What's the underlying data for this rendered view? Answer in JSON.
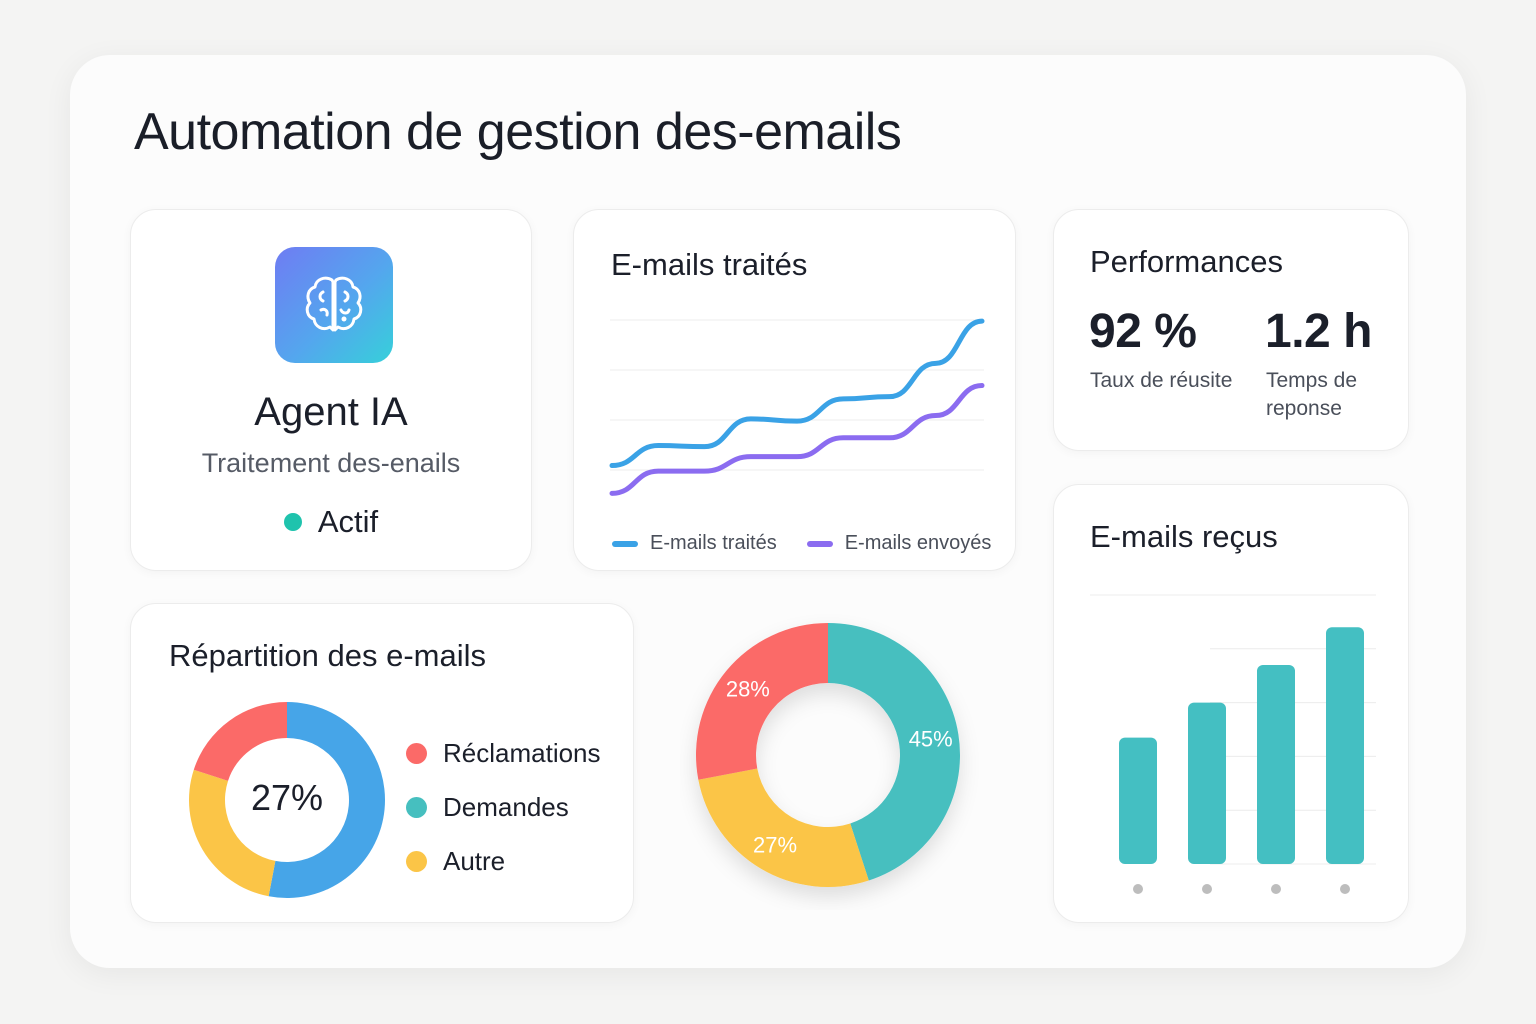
{
  "page": {
    "title": "Automation de gestion des-emails"
  },
  "agent": {
    "name": "Agent IA",
    "subtitle": "Traitement des-enails",
    "status": "Actif",
    "icon": "brain-icon",
    "status_color": "#1fc3ad"
  },
  "performance": {
    "title": "Performances",
    "kpis": [
      {
        "value": "92 %",
        "label": "Taux de réusite"
      },
      {
        "value": "1.2 h",
        "label": "Temps de reponse"
      }
    ]
  },
  "colors": {
    "blue": "#3aa2e6",
    "purple": "#8b6cf0",
    "red": "#fb6a68",
    "teal": "#46bfbf",
    "yellow": "#fbc547",
    "bar": "#44bfc2"
  },
  "chart_data": [
    {
      "type": "line",
      "title": "E-mails traités",
      "x": [
        1,
        2,
        3,
        4,
        5,
        6,
        7,
        8,
        9
      ],
      "series": [
        {
          "name": "E-mails traités",
          "color": "#3aa2e6",
          "values": [
            30,
            48,
            47,
            72,
            70,
            90,
            92,
            122,
            160
          ]
        },
        {
          "name": "E-mails envoyés",
          "color": "#8b6cf0",
          "values": [
            5,
            25,
            25,
            38,
            38,
            55,
            55,
            75,
            102
          ]
        }
      ],
      "ylim": [
        -10,
        170
      ],
      "grid": true,
      "legend": "bottom"
    },
    {
      "type": "bar",
      "title": "E-mails reçus",
      "categories": [
        "",
        "",
        "",
        ""
      ],
      "values": [
        47,
        60,
        74,
        88
      ],
      "ylim": [
        0,
        100
      ],
      "grid": true
    },
    {
      "type": "pie",
      "title": "Répartition des e-mails",
      "center_label": "27%",
      "labels": [
        "Réclamations",
        "Demandes",
        "Autre"
      ],
      "values": [
        20,
        53,
        27
      ],
      "colors": [
        "#fb6a68",
        "#46a5e8",
        "#fbc547"
      ],
      "legend_colors": [
        "#fb6a68",
        "#46bfbf",
        "#fbc547"
      ],
      "legend": "right"
    },
    {
      "type": "pie",
      "title": "",
      "slice_labels": [
        "45%",
        "27%",
        "28%"
      ],
      "values": [
        45,
        27,
        28
      ],
      "colors": [
        "#46bfbf",
        "#fbc547",
        "#fb6a68"
      ]
    }
  ]
}
